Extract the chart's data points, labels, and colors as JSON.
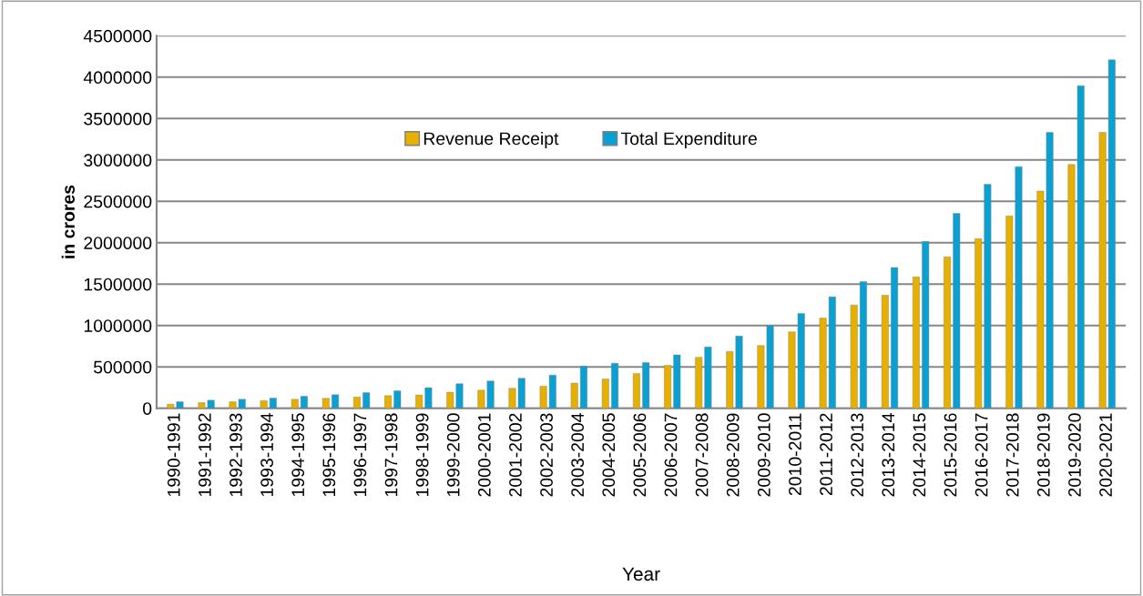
{
  "chart_data": {
    "type": "bar",
    "xlabel": "Year",
    "ylabel": "in crores",
    "categories": [
      "1990-1991",
      "1991-1992",
      "1992-1993",
      "1993-1994",
      "1994-1995",
      "1995-1996",
      "1996-1997",
      "1997-1998",
      "1998-1999",
      "1999-2000",
      "2000-2001",
      "2001-2002",
      "2002-2003",
      "2003-2004",
      "2004-2005",
      "2005-2006",
      "2006-2007",
      "2007-2008",
      "2008-2009",
      "2009-2010",
      "2010-2011",
      "2011-2012",
      "2012-2013",
      "2013-2014",
      "2014-2015",
      "2015-2016",
      "2016-2017",
      "2017-2018",
      "2018-2019",
      "2019-2020",
      "2020-2021"
    ],
    "series": [
      {
        "name": "Revenue Receipt",
        "color": "#e6b000",
        "values": [
          50000,
          67000,
          78000,
          93000,
          108000,
          119000,
          137000,
          152000,
          160000,
          193000,
          219000,
          241000,
          267000,
          303000,
          354000,
          420000,
          518000,
          616000,
          686000,
          759000,
          923000,
          1089000,
          1247000,
          1365000,
          1587000,
          1830000,
          2048000,
          2325000,
          2624000,
          2945000,
          3332000
        ]
      },
      {
        "name": "Total Expenditure",
        "color": "#0aa0d2",
        "values": [
          78000,
          97000,
          108000,
          122000,
          144000,
          163000,
          189000,
          211000,
          248000,
          297000,
          330000,
          363000,
          401000,
          507000,
          544000,
          551000,
          646000,
          741000,
          872000,
          1000000,
          1146000,
          1347000,
          1531000,
          1701000,
          2015000,
          2354000,
          2705000,
          2919000,
          3332000,
          3897000,
          4210000
        ]
      }
    ],
    "ylim": [
      0,
      4500000
    ],
    "yticks": [
      0,
      500000,
      1000000,
      1500000,
      2000000,
      2500000,
      3000000,
      3500000,
      4000000,
      4500000
    ],
    "grid": "y",
    "legend": "top left"
  }
}
